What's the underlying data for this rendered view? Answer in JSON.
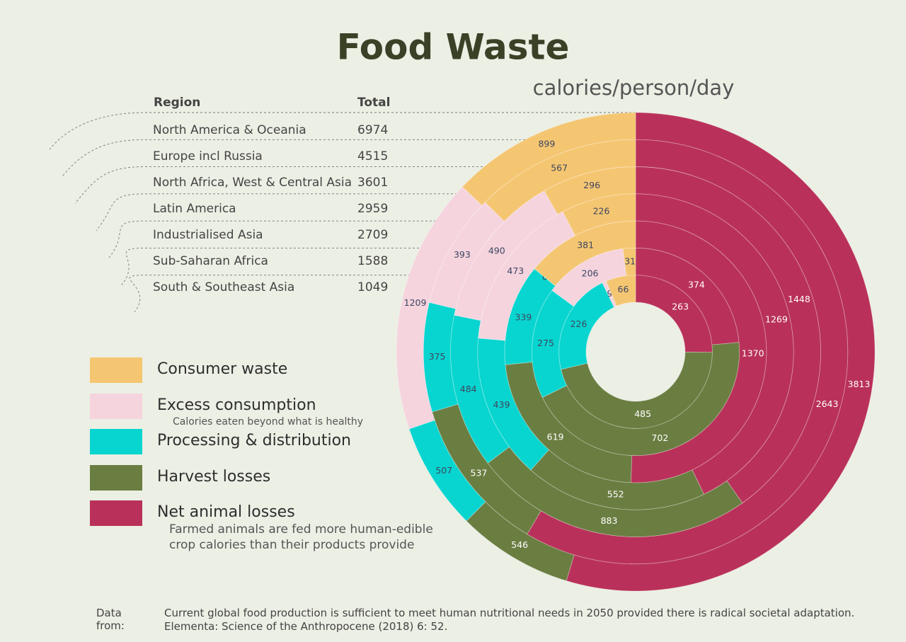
{
  "chart_data": {
    "type": "radial_bar",
    "title": "Food Waste",
    "subtitle": "calories/person/day",
    "table_headers": [
      "Region",
      "Total"
    ],
    "categories": [
      "North America & Oceania",
      "Europe incl Russia",
      "North Africa, West & Central Asia",
      "Latin America",
      "Industrialised Asia",
      "Sub-Saharan Africa",
      "South & Southeast Asia"
    ],
    "totals": [
      6974,
      4515,
      3601,
      2959,
      2709,
      1588,
      1049
    ],
    "series": [
      {
        "name": "Consumer waste",
        "color": "#f5c672",
        "values": [
          899,
          567,
          296,
          226,
          381,
          31,
          66
        ]
      },
      {
        "name": "Excess consumption",
        "note": "Calories eaten beyond what is healthy",
        "color": "#f5d4de",
        "values": [
          1209,
          393,
          490,
          473,
          0,
          206,
          9
        ]
      },
      {
        "name": "Processing & distribution",
        "color": "#08d5d0",
        "values": [
          507,
          375,
          484,
          439,
          339,
          275,
          226
        ]
      },
      {
        "name": "Harvest losses",
        "color": "#6b7e42",
        "values": [
          546,
          537,
          883,
          552,
          619,
          702,
          485
        ]
      },
      {
        "name": "Net animal losses",
        "note": "Farmed animals are fed more human-edible crop calories than their products provide",
        "color": "#b9315a",
        "values": [
          3813,
          2643,
          1448,
          1269,
          1370,
          374,
          263
        ]
      }
    ],
    "source": {
      "label": "Data from:",
      "lines": [
        "Current global food production is sufficient to meet human nutritional needs in 2050 provided there is radical societal adaptation.",
        "Elementa: Science of the Anthropocene (2018) 6: 52."
      ]
    }
  }
}
